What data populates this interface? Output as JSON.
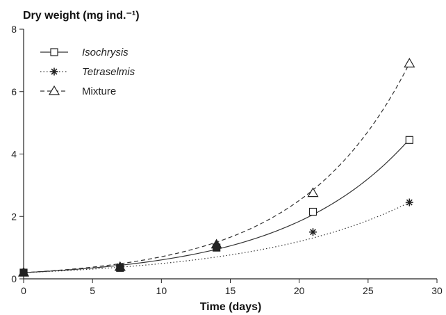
{
  "chart_data": {
    "type": "scatter",
    "title": "",
    "ylabel": "Dry weight (mg ind.⁻¹)",
    "xlabel": "Time (days)",
    "xlim": [
      0,
      30
    ],
    "ylim": [
      0,
      8
    ],
    "x_ticks": [
      "0",
      "5",
      "10",
      "15",
      "20",
      "25",
      "30"
    ],
    "y_ticks": [
      "0",
      "2",
      "4",
      "6",
      "8"
    ],
    "grid": false,
    "legend_position": "top-left",
    "series": [
      {
        "name": "Isochrysis",
        "marker": "square-open",
        "line_style": "solid",
        "points": [
          [
            0,
            0.2
          ],
          [
            7,
            0.35
          ],
          [
            14,
            1.0
          ],
          [
            21,
            2.15
          ],
          [
            28,
            4.45
          ]
        ],
        "fit": {
          "a": 0.2,
          "b": 0.111
        }
      },
      {
        "name": "Tetraselmis",
        "marker": "asterisk",
        "line_style": "dotted",
        "points": [
          [
            0,
            0.2
          ],
          [
            7,
            0.4
          ],
          [
            14,
            1.05
          ],
          [
            21,
            1.5
          ],
          [
            28,
            2.45
          ]
        ],
        "fit": {
          "a": 0.2,
          "b": 0.0895
        }
      },
      {
        "name": "Mixture",
        "marker": "triangle-open",
        "line_style": "dashed",
        "points": [
          [
            0,
            0.2
          ],
          [
            7,
            0.38
          ],
          [
            14,
            1.1
          ],
          [
            21,
            2.75
          ],
          [
            28,
            6.9
          ]
        ],
        "fit": {
          "a": 0.2,
          "b": 0.1265
        }
      }
    ]
  }
}
